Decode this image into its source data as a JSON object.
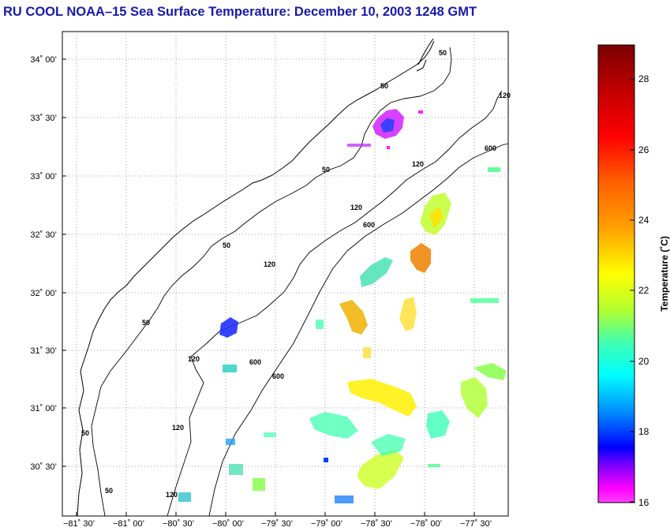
{
  "title": "RU COOL  NOAA–15  Sea Surface Temperature:  December 10, 2003 1248 GMT",
  "map": {
    "lat_ticks": [
      "34˚ 00’",
      "33˚ 30’",
      "33˚ 00’",
      "32˚ 30’",
      "32˚ 00’",
      "31˚ 30’",
      "31˚ 00’",
      "30˚ 30’"
    ],
    "lon_ticks": [
      "−81˚ 30’",
      "−81˚ 00’",
      "−80˚ 30’",
      "−80˚ 00’",
      "−79˚ 30’",
      "−79˚ 00’",
      "−78˚ 30’",
      "−78˚ 00’",
      "−77˚ 30’"
    ],
    "contour_labels": [
      "50",
      "50",
      "120",
      "50",
      "120",
      "600",
      "120",
      "600",
      "50",
      "120",
      "600",
      "50",
      "120",
      "600",
      "50",
      "120",
      "50",
      "120"
    ]
  },
  "colorbar": {
    "title": "Temperature (˚C)",
    "tick_labels": [
      "28",
      "26",
      "24",
      "22",
      "20",
      "18",
      "16"
    ],
    "colors": [
      "#7a0000",
      "#ff0000",
      "#ff8000",
      "#ffff00",
      "#80ff40",
      "#00ffff",
      "#0080ff",
      "#0000ff",
      "#8000ff",
      "#ff00ff"
    ]
  }
}
